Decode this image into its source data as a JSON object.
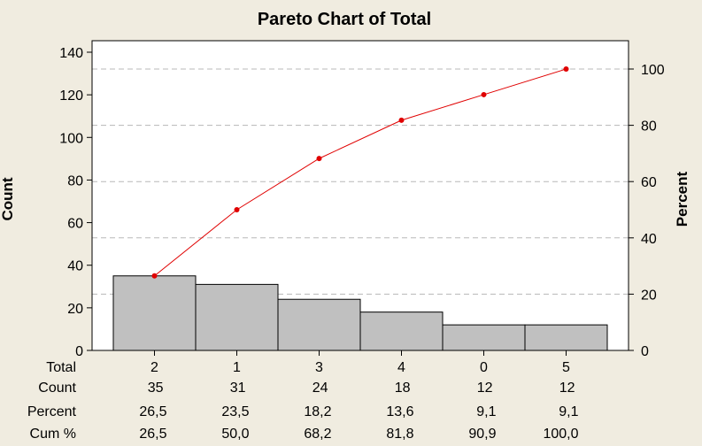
{
  "chart_data": {
    "type": "bar",
    "title": "Pareto Chart of Total",
    "xlabel": "",
    "ylabel": "Count",
    "y2label": "Percent",
    "ylim": [
      0,
      140
    ],
    "y2lim": [
      0,
      100
    ],
    "yticks": [
      "0",
      "20",
      "40",
      "60",
      "80",
      "100",
      "120",
      "140"
    ],
    "y2ticks": [
      "0",
      "20",
      "40",
      "60",
      "80",
      "100"
    ],
    "categories": [
      "2",
      "1",
      "3",
      "4",
      "0",
      "5"
    ],
    "values": [
      35,
      31,
      24,
      18,
      12,
      12
    ],
    "cumulative_percent": [
      26.5,
      50.0,
      68.2,
      81.8,
      90.9,
      100.0
    ],
    "grid": "horizontal dashed (percent axis)",
    "bar_color": "#c0c0c0",
    "line_color": "#e00000",
    "table": {
      "row_labels": [
        "Total",
        "Count",
        "Percent",
        "Cum %"
      ],
      "count": [
        "35",
        "31",
        "24",
        "18",
        "12",
        "12"
      ],
      "percent": [
        "26,5",
        "23,5",
        "18,2",
        "13,6",
        "9,1",
        "9,1"
      ],
      "cum_percent": [
        "26,5",
        "50,0",
        "68,2",
        "81,8",
        "90,9",
        "100,0"
      ]
    }
  }
}
